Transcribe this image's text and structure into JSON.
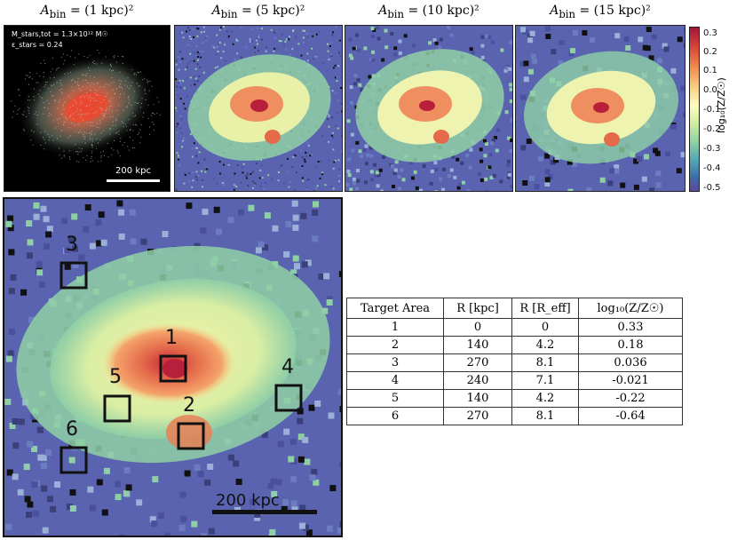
{
  "panels": [
    {
      "prefix": "A",
      "suffix": "bin",
      "value": "= (1 kpc)²"
    },
    {
      "prefix": "A",
      "suffix": "bin",
      "value": "= (5 kpc)²"
    },
    {
      "prefix": "A",
      "suffix": "bin",
      "value": "= (10 kpc)²"
    },
    {
      "prefix": "A",
      "suffix": "bin",
      "value": "= (15 kpc)²"
    }
  ],
  "annotation": {
    "mass": "M_stars,tot = 1.3×10¹² M☉",
    "ellipticity": "ε_stars = 0.24"
  },
  "scalebar_small": "200 kpc",
  "scalebar_large": "200 kpc",
  "colorbar": {
    "label": "log₁₀(Z/Z☉)",
    "ticks": [
      "0.3",
      "0.2",
      "0.1",
      "0.0",
      "-0.1",
      "-0.2",
      "-0.3",
      "-0.4",
      "-0.5"
    ],
    "range": [
      -0.5,
      0.35
    ]
  },
  "target_labels": [
    "1",
    "2",
    "3",
    "4",
    "5",
    "6"
  ],
  "table": {
    "headers": [
      "Target Area",
      "R [kpc]",
      "R [R_eff]",
      "log₁₀(Z/Z☉)"
    ],
    "rows": [
      [
        "1",
        "0",
        "0",
        "0.33"
      ],
      [
        "2",
        "140",
        "4.2",
        "0.18"
      ],
      [
        "3",
        "270",
        "8.1",
        "0.036"
      ],
      [
        "4",
        "240",
        "7.1",
        "-0.021"
      ],
      [
        "5",
        "140",
        "4.2",
        "-0.22"
      ],
      [
        "6",
        "270",
        "8.1",
        "-0.64"
      ]
    ]
  },
  "colors": {
    "background_metal_poor": "#5a63b0",
    "halo": "#8fcfa6",
    "disk": "#f6f2a8",
    "core": "#e46a4a",
    "center": "#b81f3a"
  }
}
